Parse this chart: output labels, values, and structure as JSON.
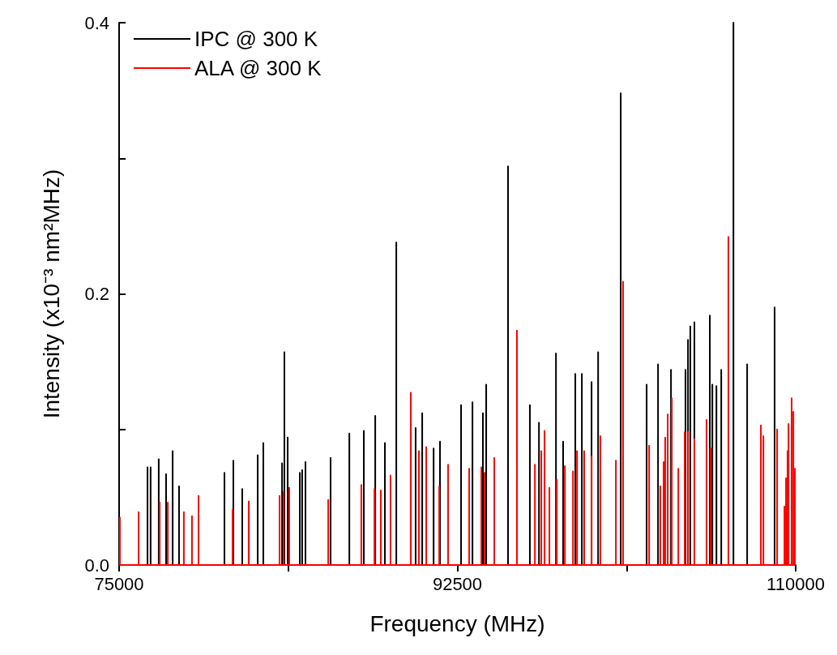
{
  "chart_data": {
    "type": "line",
    "xlabel": "Frequency (MHz)",
    "ylabel": "Intensity (x10⁻³ nm²MHz)",
    "xlim": [
      75000,
      110000
    ],
    "xticks": [
      75000,
      {
        "value": 83750,
        "label": null
      },
      92500,
      {
        "value": 101250,
        "label": null
      },
      110000
    ],
    "ylim": [
      0,
      0.4
    ],
    "yticks": [
      {
        "value": 0,
        "label": "0.0"
      },
      {
        "value": 0.1,
        "label": null
      },
      {
        "value": 0.2,
        "label": "0.2"
      },
      {
        "value": 0.3,
        "label": null
      },
      {
        "value": 0.4,
        "label": "0.4"
      }
    ],
    "grid": false,
    "legend": "top left",
    "marker": "none",
    "line_style": "solid",
    "series": [
      {
        "name": "IPC @ 300 K",
        "color": "#000000",
        "x": [
          76470,
          76470,
          76470,
          76630,
          76630,
          76630,
          77050,
          77050,
          77050,
          77430,
          77430,
          77430,
          77770,
          77770,
          77770,
          78100,
          78100,
          78100,
          80450,
          80450,
          80450,
          80910,
          80910,
          80910,
          81370,
          81370,
          81370,
          82170,
          82170,
          82170,
          82460,
          82460,
          82460,
          83430,
          83430,
          83430,
          83550,
          83550,
          83550,
          83720,
          83720,
          83720,
          84350,
          84350,
          84350,
          84470,
          84470,
          84470,
          84640,
          84640,
          84640,
          85940,
          85940,
          85940,
          86910,
          86910,
          86910,
          87660,
          87660,
          87660,
          88250,
          88250,
          88250,
          88750,
          88750,
          88750,
          89340,
          89340,
          89340,
          90340,
          90340,
          90340,
          90680,
          90680,
          90680,
          91270,
          91270,
          91270,
          91600,
          91600,
          91600,
          92690,
          92690,
          92690,
          93280,
          93280,
          93280,
          93820,
          93820,
          93820,
          93990,
          93990,
          93990,
          95120,
          95120,
          95120,
          96250,
          96250,
          96250,
          96720,
          96720,
          96720,
          97600,
          97600,
          97600,
          97970,
          97970,
          97970,
          98600,
          98600,
          98600,
          98940,
          98940,
          98940,
          99440,
          99440,
          99440,
          99780,
          99780,
          99780,
          100950,
          100950,
          100950,
          102290,
          102290,
          102290,
          102880,
          102880,
          102880,
          103550,
          103550,
          103550,
          104300,
          104300,
          104300,
          104430,
          104430,
          104430,
          104550,
          104550,
          104550,
          104760,
          104760,
          104760,
          105560,
          105560,
          105560,
          105690,
          105690,
          105690,
          105900,
          105900,
          105900,
          106150,
          106150,
          106150,
          106780,
          106780,
          106780,
          107490,
          107490,
          107490,
          108910,
          108910,
          108910
        ],
        "values": [
          0,
          0.072,
          0,
          0,
          0.072,
          0,
          0,
          0.078,
          0,
          0,
          0.067,
          0,
          0,
          0.084,
          0,
          0,
          0.058,
          0,
          0,
          0.068,
          0,
          0,
          0.077,
          0,
          0,
          0.056,
          0,
          0,
          0.081,
          0,
          0,
          0.09,
          0,
          0,
          0.075,
          0,
          0,
          0.157,
          0,
          0,
          0.094,
          0,
          0,
          0.068,
          0,
          0,
          0.07,
          0,
          0,
          0.076,
          0,
          0,
          0.079,
          0,
          0,
          0.097,
          0,
          0,
          0.099,
          0,
          0,
          0.11,
          0,
          0,
          0.09,
          0,
          0,
          0.238,
          0,
          0,
          0.101,
          0,
          0,
          0.112,
          0,
          0,
          0.086,
          0,
          0,
          0.091,
          0,
          0,
          0.118,
          0,
          0,
          0.12,
          0,
          0,
          0.112,
          0,
          0,
          0.133,
          0,
          0,
          0.294,
          0,
          0,
          0.118,
          0,
          0,
          0.105,
          0,
          0,
          0.156,
          0,
          0,
          0.091,
          0,
          0,
          0.141,
          0,
          0,
          0.141,
          0,
          0,
          0.135,
          0,
          0,
          0.157,
          0,
          0,
          0.348,
          0,
          0,
          0.133,
          0,
          0,
          0.148,
          0,
          0,
          0.144,
          0,
          0,
          0.144,
          0,
          0,
          0.166,
          0,
          0,
          0.176,
          0,
          0,
          0.179,
          0,
          0,
          0.184,
          0,
          0,
          0.133,
          0,
          0,
          0.132,
          0,
          0,
          0.144,
          0,
          0,
          0.4,
          0,
          0,
          0.148,
          0,
          0,
          0.19,
          0
        ]
      },
      {
        "name": "ALA @ 300 K",
        "color": "#ff0000",
        "x": [
          75040,
          75040,
          75040,
          76010,
          76010,
          76010,
          77100,
          77100,
          77100,
          77520,
          77520,
          77520,
          78350,
          78350,
          78350,
          78770,
          78770,
          78770,
          79110,
          79110,
          79110,
          80870,
          80870,
          80870,
          81710,
          81710,
          81710,
          83300,
          83300,
          83300,
          83510,
          83510,
          83510,
          83800,
          83800,
          83800,
          85820,
          85820,
          85820,
          87530,
          87530,
          87530,
          88210,
          88210,
          88210,
          88540,
          88540,
          88540,
          89040,
          89040,
          89040,
          90090,
          90090,
          90090,
          90510,
          90510,
          90510,
          90890,
          90890,
          90890,
          91560,
          91560,
          91560,
          92020,
          92020,
          92020,
          93110,
          93110,
          93110,
          93740,
          93740,
          93740,
          93910,
          93910,
          93910,
          94410,
          94410,
          94410,
          95580,
          95580,
          95580,
          96510,
          96510,
          96510,
          96840,
          96840,
          96840,
          97010,
          97010,
          97010,
          97260,
          97260,
          97260,
          97640,
          97640,
          97640,
          98060,
          98060,
          98060,
          98480,
          98480,
          98480,
          98690,
          98690,
          98690,
          99060,
          99060,
          99060,
          99440,
          99440,
          99440,
          99900,
          99900,
          99900,
          100700,
          100700,
          100700,
          101070,
          101070,
          101070,
          102420,
          102420,
          102420,
          103000,
          103000,
          103000,
          103170,
          103170,
          103170,
          103250,
          103250,
          103250,
          103380,
          103380,
          103380,
          103590,
          103590,
          103590,
          103930,
          103930,
          103930,
          104260,
          104260,
          104260,
          104430,
          104430,
          104430,
          104760,
          104760,
          104760,
          105390,
          105390,
          105390,
          105600,
          105600,
          105600,
          106520,
          106520,
          106520,
          108200,
          108200,
          108200,
          108330,
          108330,
          108330,
          109040,
          109040,
          109040,
          109420,
          109420,
          109420,
          109500,
          109500,
          109500,
          109580,
          109580,
          109580,
          109630,
          109630,
          109630,
          109790,
          109790,
          109790,
          109880,
          109880,
          109880,
          109960,
          109960,
          109960
        ],
        "values": [
          0,
          0.035,
          0,
          0,
          0.039,
          0,
          0,
          0.046,
          0,
          0,
          0.046,
          0,
          0,
          0.039,
          0,
          0,
          0.036,
          0,
          0,
          0.051,
          0,
          0,
          0.041,
          0,
          0,
          0.047,
          0,
          0,
          0.051,
          0,
          0,
          0.054,
          0,
          0,
          0.057,
          0,
          0,
          0.048,
          0,
          0,
          0.059,
          0,
          0,
          0.056,
          0,
          0,
          0.055,
          0,
          0,
          0.066,
          0,
          0,
          0.127,
          0,
          0,
          0.084,
          0,
          0,
          0.087,
          0,
          0,
          0.058,
          0,
          0,
          0.074,
          0,
          0,
          0.071,
          0,
          0,
          0.072,
          0,
          0,
          0.068,
          0,
          0,
          0.079,
          0,
          0,
          0.173,
          0,
          0,
          0.074,
          0,
          0,
          0.084,
          0,
          0,
          0.099,
          0,
          0,
          0.057,
          0,
          0,
          0.063,
          0,
          0,
          0.073,
          0,
          0,
          0.069,
          0,
          0,
          0.084,
          0,
          0,
          0.084,
          0,
          0,
          0.08,
          0,
          0,
          0.095,
          0,
          0,
          0.077,
          0,
          0,
          0.209,
          0,
          0,
          0.088,
          0,
          0,
          0.058,
          0,
          0,
          0.076,
          0,
          0,
          0.094,
          0,
          0,
          0.111,
          0,
          0,
          0.123,
          0,
          0,
          0.071,
          0,
          0,
          0.098,
          0,
          0,
          0.098,
          0,
          0,
          0.093,
          0,
          0,
          0.107,
          0,
          0,
          0.086,
          0,
          0,
          0.242,
          0,
          0,
          0.103,
          0,
          0,
          0.095,
          0,
          0,
          0.1,
          0,
          0,
          0.043,
          0,
          0,
          0.064,
          0,
          0,
          0.084,
          0,
          0,
          0.104,
          0,
          0,
          0.123,
          0,
          0,
          0.113,
          0,
          0,
          0.071,
          0
        ]
      }
    ]
  }
}
